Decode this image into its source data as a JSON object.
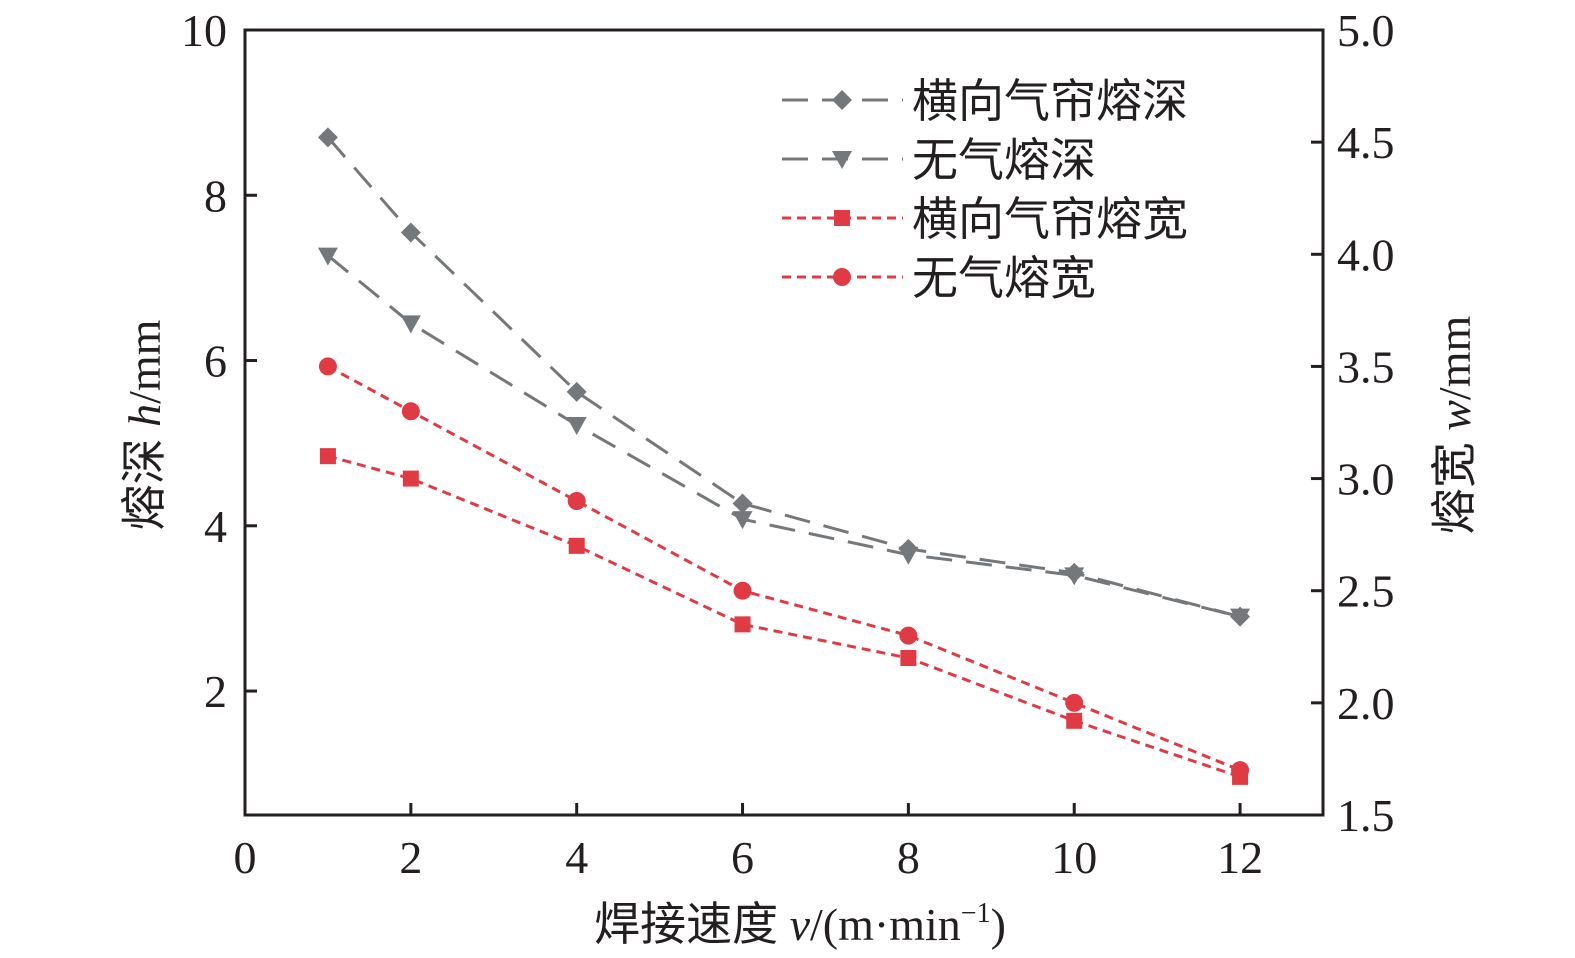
{
  "chart_data": {
    "type": "line",
    "x": [
      1,
      2,
      4,
      6,
      8,
      10,
      12
    ],
    "xlim": [
      0,
      13
    ],
    "xticks": [
      "0",
      "2",
      "4",
      "6",
      "8",
      "10",
      "12"
    ],
    "xlabel": {
      "prefix": "焊接速度 ",
      "var": "v",
      "unit": "/(m·min",
      "sup": "−1",
      "close": ")"
    },
    "y_left": {
      "ylim": [
        0.5,
        10
      ],
      "ticks": [
        "2",
        "4",
        "6",
        "8",
        "10"
      ],
      "label": {
        "prefix": "熔深 ",
        "var": "h",
        "unit": "/mm"
      }
    },
    "y_right": {
      "ylim": [
        1.5,
        5.0
      ],
      "ticks": [
        "1.5",
        "2.0",
        "2.5",
        "3.0",
        "3.5",
        "4.0",
        "4.5",
        "5.0"
      ],
      "label": {
        "prefix": "熔宽 ",
        "var": "w",
        "unit": "/mm"
      }
    },
    "series": [
      {
        "name": "横向气帘熔深",
        "axis": "left",
        "values": [
          8.7,
          7.55,
          5.62,
          4.27,
          3.72,
          3.43,
          2.9
        ],
        "color": "#75787b",
        "marker": "diamond",
        "dash": "dashed"
      },
      {
        "name": "无气熔深",
        "axis": "left",
        "values": [
          7.27,
          6.45,
          5.22,
          4.08,
          3.65,
          3.4,
          2.9
        ],
        "color": "#75787b",
        "marker": "triangle-down",
        "dash": "dashed"
      },
      {
        "name": "横向气帘熔宽",
        "axis": "right",
        "values": [
          3.1,
          3.0,
          2.7,
          2.35,
          2.2,
          1.92,
          1.67
        ],
        "color": "#e03a44",
        "marker": "square",
        "dash": "dotted"
      },
      {
        "name": "无气熔宽",
        "axis": "right",
        "values": [
          3.5,
          3.3,
          2.9,
          2.5,
          2.3,
          2.0,
          1.7
        ],
        "color": "#e03a44",
        "marker": "circle",
        "dash": "dotted"
      }
    ],
    "legend_position": "top-right",
    "grid": false
  }
}
